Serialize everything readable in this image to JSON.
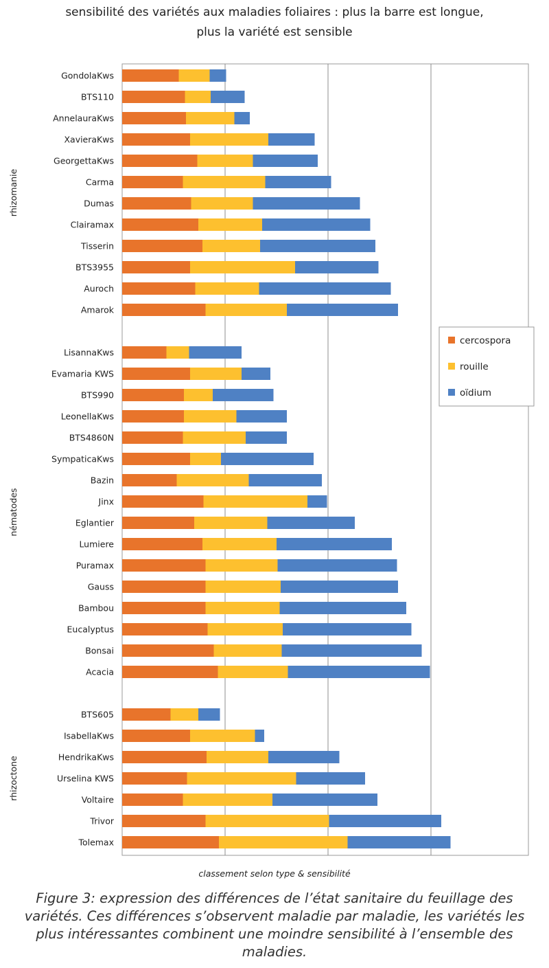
{
  "title": "sensibilité des variétés aux maladies foliaires : plus la barre est longue, plus la variété est sensible",
  "caption": "Figure 3: expression des différences de l’état sanitaire du feuillage des variétés. Ces différences s’observent maladie par maladie, les variétés les plus intéressantes combinent une moindre sensibilité à l’ensemble des maladies.",
  "chart_data": {
    "type": "bar",
    "orientation": "horizontal",
    "stacked": true,
    "title": "sensibilité des variétés aux maladies foliaires : plus la barre est longue, plus la variété est sensible",
    "xlabel": "classement selon type & sensibilité",
    "ylabel": "",
    "xlim": [
      0,
      4
    ],
    "grid": "vertical gridlines",
    "legend_position": "right",
    "colors": {
      "cercospora": "#E8742B",
      "rouille": "#FDC02F",
      "oidium": "#4F81C4"
    },
    "series_names": [
      "cercospora",
      "rouille",
      "oïdium"
    ],
    "groups": [
      {
        "name": "rhizomanie",
        "categories": [
          "GondolaKws",
          "BTS110",
          "AnnelauraKws",
          "XavieraKws",
          "GeorgettaKws",
          "Carma",
          "Dumas",
          "Clairamax",
          "Tisserin",
          "BTS3955",
          "Auroch",
          "Amarok"
        ],
        "cercospora": [
          0.55,
          0.61,
          0.62,
          0.66,
          0.73,
          0.59,
          0.67,
          0.74,
          0.78,
          0.66,
          0.71,
          0.81
        ],
        "rouille": [
          0.3,
          0.25,
          0.47,
          0.76,
          0.54,
          0.8,
          0.6,
          0.62,
          0.56,
          1.02,
          0.62,
          0.79
        ],
        "oidium": [
          0.16,
          0.33,
          0.15,
          0.45,
          0.63,
          0.64,
          1.04,
          1.05,
          1.12,
          0.81,
          1.28,
          1.08
        ]
      },
      {
        "name": "nématodes",
        "categories": [
          "LisannaKws",
          "Evamaria KWS",
          "BTS990",
          "LeonellaKws",
          "BTS4860N",
          "SympaticaKws",
          "Bazin",
          "Jinx",
          "Eglantier",
          "Lumiere",
          "Puramax",
          "Gauss",
          "Bambou",
          "Eucalyptus",
          "Bonsai",
          "Acacia"
        ],
        "cercospora": [
          0.43,
          0.66,
          0.6,
          0.6,
          0.59,
          0.66,
          0.53,
          0.79,
          0.7,
          0.78,
          0.81,
          0.81,
          0.81,
          0.83,
          0.89,
          0.93
        ],
        "rouille": [
          0.22,
          0.5,
          0.28,
          0.51,
          0.61,
          0.3,
          0.7,
          1.01,
          0.71,
          0.72,
          0.7,
          0.73,
          0.72,
          0.73,
          0.66,
          0.68
        ],
        "oidium": [
          0.51,
          0.28,
          0.59,
          0.49,
          0.4,
          0.9,
          0.71,
          0.19,
          0.85,
          1.12,
          1.16,
          1.14,
          1.23,
          1.25,
          1.36,
          1.38
        ]
      },
      {
        "name": "rhizoctone",
        "categories": [
          "BTS605",
          "IsabellaKws",
          "HendrikaKws",
          "Urselina KWS",
          "Voltaire",
          "Trivor",
          "Tolemax"
        ],
        "cercospora": [
          0.47,
          0.66,
          0.82,
          0.63,
          0.59,
          0.81,
          0.94
        ],
        "rouille": [
          0.27,
          0.63,
          0.6,
          1.06,
          0.87,
          1.2,
          1.25
        ],
        "oidium": [
          0.21,
          0.09,
          0.69,
          0.67,
          1.02,
          1.09,
          1.0
        ]
      }
    ]
  }
}
